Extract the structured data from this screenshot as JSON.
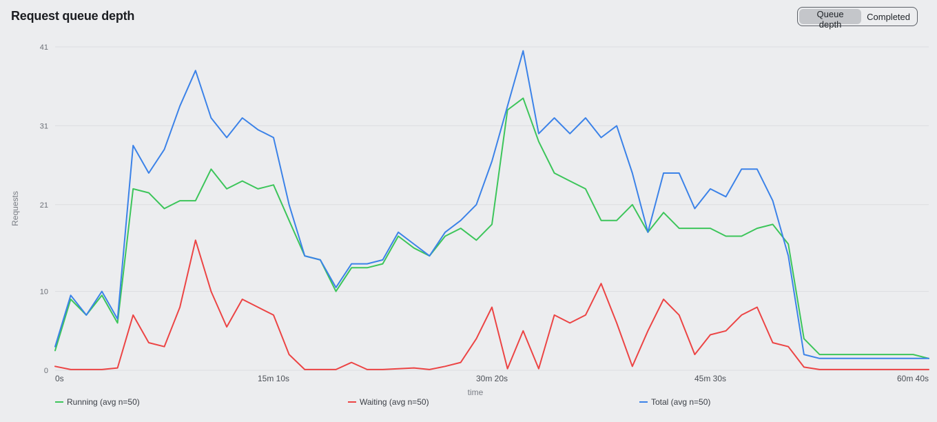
{
  "header": {
    "title": "Request queue depth",
    "toggle": {
      "options": [
        "Queue depth",
        "Completed"
      ],
      "selected": "Queue depth"
    }
  },
  "chart_data": {
    "type": "line",
    "title": "",
    "xlabel": "time",
    "ylabel": "Requests",
    "ylim": [
      0,
      41
    ],
    "xlim": [
      0,
      3640
    ],
    "y_ticks": [
      0,
      10,
      21,
      31,
      41
    ],
    "x_ticks": [
      {
        "value": 0,
        "label": "0s"
      },
      {
        "value": 910,
        "label": "15m 10s"
      },
      {
        "value": 1820,
        "label": "30m 20s"
      },
      {
        "value": 2730,
        "label": "45m 30s"
      },
      {
        "value": 3640,
        "label": "60m 40s"
      }
    ],
    "grid": true,
    "legend_position": "bottom",
    "x": [
      0,
      65,
      130,
      195,
      260,
      325,
      390,
      455,
      520,
      585,
      650,
      715,
      780,
      845,
      910,
      975,
      1040,
      1105,
      1170,
      1235,
      1300,
      1365,
      1430,
      1495,
      1560,
      1625,
      1690,
      1755,
      1820,
      1885,
      1950,
      2015,
      2080,
      2145,
      2210,
      2275,
      2340,
      2405,
      2470,
      2535,
      2600,
      2665,
      2730,
      2795,
      2860,
      2925,
      2990,
      3055,
      3120,
      3185,
      3250,
      3315,
      3380,
      3445,
      3510,
      3575,
      3640
    ],
    "series": [
      {
        "name": "Running (avg n=50)",
        "color": "#3cc55a",
        "values": [
          2.5,
          9.0,
          7.0,
          9.5,
          6.0,
          23.0,
          22.5,
          20.5,
          21.5,
          21.5,
          25.5,
          23.0,
          24.0,
          23.0,
          23.5,
          19.0,
          14.5,
          14.0,
          10.0,
          13.0,
          13.0,
          13.5,
          17.0,
          15.5,
          14.5,
          17.0,
          18.0,
          16.5,
          18.5,
          33.0,
          34.5,
          29.0,
          25.0,
          24.0,
          23.0,
          19.0,
          19.0,
          21.0,
          17.5,
          20.0,
          18.0,
          18.0,
          18.0,
          17.0,
          17.0,
          18.0,
          18.5,
          16.0,
          4.0,
          2.0,
          2.0,
          2.0,
          2.0,
          2.0,
          2.0,
          2.0,
          1.5
        ]
      },
      {
        "name": "Waiting (avg n=50)",
        "color": "#ec4444",
        "values": [
          0.5,
          0.1,
          0.1,
          0.1,
          0.3,
          7.0,
          3.5,
          3.0,
          8.0,
          16.5,
          10.0,
          5.5,
          9.0,
          8.0,
          7.0,
          2.0,
          0.1,
          0.1,
          0.1,
          1.0,
          0.1,
          0.1,
          0.2,
          0.3,
          0.1,
          0.5,
          1.0,
          4.0,
          8.0,
          0.2,
          5.0,
          0.2,
          7.0,
          6.0,
          7.0,
          11.0,
          6.0,
          0.5,
          5.0,
          9.0,
          7.0,
          2.0,
          4.5,
          5.0,
          7.0,
          8.0,
          3.5,
          3.0,
          0.4,
          0.1,
          0.1,
          0.1,
          0.1,
          0.1,
          0.1,
          0.1,
          0.1
        ]
      },
      {
        "name": "Total (avg n=50)",
        "color": "#3b82e8",
        "values": [
          3.0,
          9.5,
          7.0,
          10.0,
          6.5,
          28.5,
          25.0,
          28.0,
          33.5,
          38.0,
          32.0,
          29.5,
          32.0,
          30.5,
          29.5,
          21.0,
          14.5,
          14.0,
          10.5,
          13.5,
          13.5,
          14.0,
          17.5,
          16.0,
          14.5,
          17.5,
          19.0,
          21.0,
          26.5,
          33.5,
          40.5,
          30.0,
          32.0,
          30.0,
          32.0,
          29.5,
          31.0,
          25.0,
          17.5,
          25.0,
          25.0,
          20.5,
          23.0,
          22.0,
          25.5,
          25.5,
          21.5,
          14.5,
          2.0,
          1.5,
          1.5,
          1.5,
          1.5,
          1.5,
          1.5,
          1.5,
          1.5
        ]
      }
    ]
  }
}
